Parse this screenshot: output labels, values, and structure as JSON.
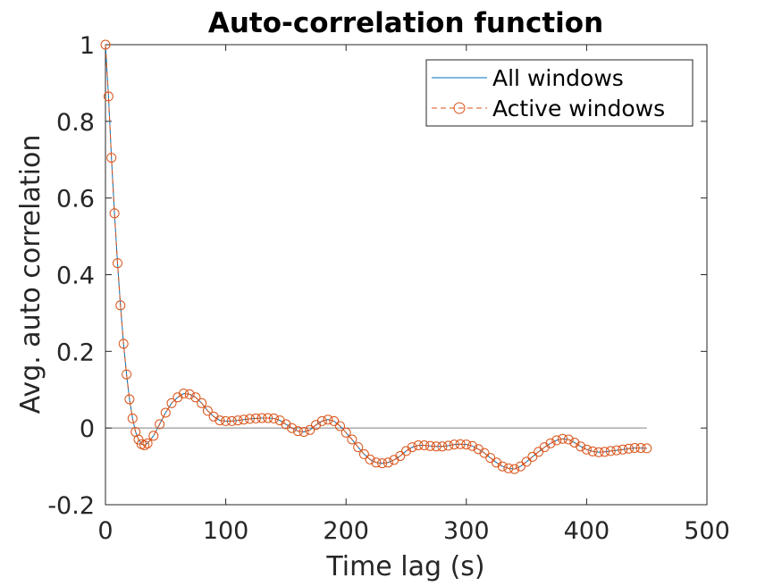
{
  "chart_data": {
    "type": "line",
    "title": "Auto-correlation function",
    "xlabel": "Time lag (s)",
    "ylabel": "Avg. auto correlation",
    "xlim": [
      0,
      500
    ],
    "ylim": [
      -0.2,
      1
    ],
    "xticks": [
      0,
      100,
      200,
      300,
      400,
      500
    ],
    "yticks": [
      -0.2,
      0,
      0.2,
      0.4,
      0.6,
      0.8,
      1
    ],
    "ytick_labels": [
      "-0.2",
      "0",
      "0.2",
      "0.4",
      "0.6",
      "0.8",
      "1"
    ],
    "legend_position": "top-right",
    "grid": false,
    "zero_line": true,
    "x_max": 450,
    "series": [
      {
        "name": "All windows",
        "style": "solid",
        "color": "#0072BD",
        "points": [
          [
            0,
            1.0
          ],
          [
            2.5,
            0.865
          ],
          [
            5,
            0.705
          ],
          [
            7.5,
            0.56
          ],
          [
            10,
            0.43
          ],
          [
            12.5,
            0.32
          ],
          [
            15,
            0.22
          ],
          [
            17.5,
            0.14
          ],
          [
            20,
            0.075
          ],
          [
            22.5,
            0.025
          ],
          [
            25,
            -0.01
          ],
          [
            27.5,
            -0.03
          ],
          [
            30,
            -0.042
          ],
          [
            32.5,
            -0.045
          ],
          [
            35,
            -0.04
          ],
          [
            40,
            -0.02
          ],
          [
            45,
            0.01
          ],
          [
            50,
            0.04
          ],
          [
            55,
            0.065
          ],
          [
            60,
            0.08
          ],
          [
            65,
            0.09
          ],
          [
            70,
            0.088
          ],
          [
            75,
            0.08
          ],
          [
            80,
            0.065
          ],
          [
            85,
            0.045
          ],
          [
            90,
            0.03
          ],
          [
            95,
            0.02
          ],
          [
            100,
            0.018
          ],
          [
            105,
            0.018
          ],
          [
            110,
            0.02
          ],
          [
            115,
            0.022
          ],
          [
            120,
            0.024
          ],
          [
            125,
            0.025
          ],
          [
            130,
            0.026
          ],
          [
            135,
            0.026
          ],
          [
            140,
            0.025
          ],
          [
            145,
            0.02
          ],
          [
            150,
            0.01
          ],
          [
            155,
            0.0
          ],
          [
            160,
            -0.008
          ],
          [
            165,
            -0.01
          ],
          [
            170,
            -0.005
          ],
          [
            175,
            0.008
          ],
          [
            180,
            0.018
          ],
          [
            185,
            0.022
          ],
          [
            190,
            0.018
          ],
          [
            195,
            0.005
          ],
          [
            200,
            -0.012
          ],
          [
            205,
            -0.03
          ],
          [
            210,
            -0.05
          ],
          [
            215,
            -0.068
          ],
          [
            220,
            -0.082
          ],
          [
            225,
            -0.09
          ],
          [
            230,
            -0.092
          ],
          [
            235,
            -0.09
          ],
          [
            240,
            -0.083
          ],
          [
            245,
            -0.073
          ],
          [
            250,
            -0.06
          ],
          [
            255,
            -0.05
          ],
          [
            260,
            -0.045
          ],
          [
            265,
            -0.045
          ],
          [
            270,
            -0.047
          ],
          [
            275,
            -0.048
          ],
          [
            280,
            -0.048
          ],
          [
            285,
            -0.046
          ],
          [
            290,
            -0.043
          ],
          [
            295,
            -0.042
          ],
          [
            300,
            -0.043
          ],
          [
            305,
            -0.047
          ],
          [
            310,
            -0.055
          ],
          [
            315,
            -0.065
          ],
          [
            320,
            -0.078
          ],
          [
            325,
            -0.09
          ],
          [
            330,
            -0.1
          ],
          [
            335,
            -0.105
          ],
          [
            340,
            -0.107
          ],
          [
            345,
            -0.1
          ],
          [
            350,
            -0.088
          ],
          [
            355,
            -0.075
          ],
          [
            360,
            -0.062
          ],
          [
            365,
            -0.05
          ],
          [
            370,
            -0.04
          ],
          [
            375,
            -0.032
          ],
          [
            380,
            -0.028
          ],
          [
            385,
            -0.03
          ],
          [
            390,
            -0.038
          ],
          [
            395,
            -0.048
          ],
          [
            400,
            -0.056
          ],
          [
            405,
            -0.061
          ],
          [
            410,
            -0.063
          ],
          [
            415,
            -0.062
          ],
          [
            420,
            -0.06
          ],
          [
            425,
            -0.058
          ],
          [
            430,
            -0.056
          ],
          [
            435,
            -0.054
          ],
          [
            440,
            -0.052
          ],
          [
            445,
            -0.052
          ],
          [
            450,
            -0.053
          ]
        ]
      },
      {
        "name": "Active windows",
        "style": "dashed-circles",
        "color": "#D95319",
        "points": [
          [
            0,
            1.0
          ],
          [
            2.5,
            0.865
          ],
          [
            5,
            0.705
          ],
          [
            7.5,
            0.56
          ],
          [
            10,
            0.43
          ],
          [
            12.5,
            0.32
          ],
          [
            15,
            0.22
          ],
          [
            17.5,
            0.14
          ],
          [
            20,
            0.075
          ],
          [
            22.5,
            0.025
          ],
          [
            25,
            -0.01
          ],
          [
            27.5,
            -0.03
          ],
          [
            30,
            -0.042
          ],
          [
            32.5,
            -0.045
          ],
          [
            35,
            -0.04
          ],
          [
            40,
            -0.02
          ],
          [
            45,
            0.01
          ],
          [
            50,
            0.04
          ],
          [
            55,
            0.065
          ],
          [
            60,
            0.08
          ],
          [
            65,
            0.09
          ],
          [
            70,
            0.088
          ],
          [
            75,
            0.08
          ],
          [
            80,
            0.065
          ],
          [
            85,
            0.045
          ],
          [
            90,
            0.03
          ],
          [
            95,
            0.02
          ],
          [
            100,
            0.018
          ],
          [
            105,
            0.018
          ],
          [
            110,
            0.02
          ],
          [
            115,
            0.022
          ],
          [
            120,
            0.024
          ],
          [
            125,
            0.025
          ],
          [
            130,
            0.026
          ],
          [
            135,
            0.026
          ],
          [
            140,
            0.025
          ],
          [
            145,
            0.02
          ],
          [
            150,
            0.01
          ],
          [
            155,
            0.0
          ],
          [
            160,
            -0.008
          ],
          [
            165,
            -0.01
          ],
          [
            170,
            -0.005
          ],
          [
            175,
            0.008
          ],
          [
            180,
            0.018
          ],
          [
            185,
            0.022
          ],
          [
            190,
            0.018
          ],
          [
            195,
            0.005
          ],
          [
            200,
            -0.012
          ],
          [
            205,
            -0.03
          ],
          [
            210,
            -0.05
          ],
          [
            215,
            -0.068
          ],
          [
            220,
            -0.082
          ],
          [
            225,
            -0.09
          ],
          [
            230,
            -0.092
          ],
          [
            235,
            -0.09
          ],
          [
            240,
            -0.083
          ],
          [
            245,
            -0.073
          ],
          [
            250,
            -0.06
          ],
          [
            255,
            -0.05
          ],
          [
            260,
            -0.045
          ],
          [
            265,
            -0.045
          ],
          [
            270,
            -0.047
          ],
          [
            275,
            -0.048
          ],
          [
            280,
            -0.048
          ],
          [
            285,
            -0.046
          ],
          [
            290,
            -0.043
          ],
          [
            295,
            -0.042
          ],
          [
            300,
            -0.043
          ],
          [
            305,
            -0.047
          ],
          [
            310,
            -0.055
          ],
          [
            315,
            -0.065
          ],
          [
            320,
            -0.078
          ],
          [
            325,
            -0.09
          ],
          [
            330,
            -0.1
          ],
          [
            335,
            -0.105
          ],
          [
            340,
            -0.107
          ],
          [
            345,
            -0.1
          ],
          [
            350,
            -0.088
          ],
          [
            355,
            -0.075
          ],
          [
            360,
            -0.062
          ],
          [
            365,
            -0.05
          ],
          [
            370,
            -0.04
          ],
          [
            375,
            -0.032
          ],
          [
            380,
            -0.028
          ],
          [
            385,
            -0.03
          ],
          [
            390,
            -0.038
          ],
          [
            395,
            -0.048
          ],
          [
            400,
            -0.056
          ],
          [
            405,
            -0.061
          ],
          [
            410,
            -0.063
          ],
          [
            415,
            -0.062
          ],
          [
            420,
            -0.06
          ],
          [
            425,
            -0.058
          ],
          [
            430,
            -0.056
          ],
          [
            435,
            -0.054
          ],
          [
            440,
            -0.052
          ],
          [
            445,
            -0.052
          ],
          [
            450,
            -0.053
          ]
        ]
      }
    ]
  }
}
